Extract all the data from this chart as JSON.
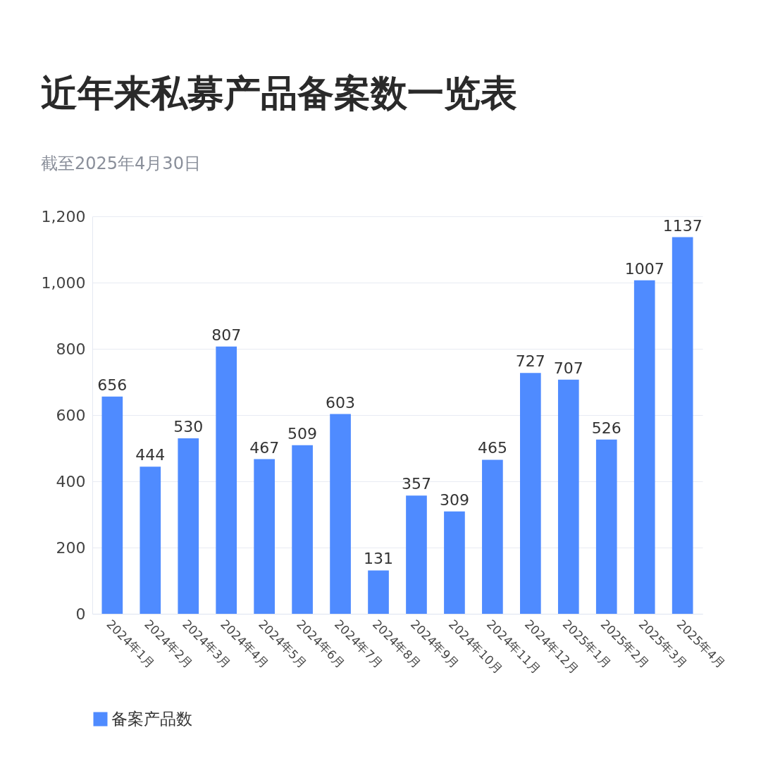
{
  "chart_data": {
    "type": "bar",
    "title": "近年来私募产品备案数一览表",
    "subtitle": "截至2025年4月30日",
    "categories": [
      "2024年1月",
      "2024年2月",
      "2024年3月",
      "2024年4月",
      "2024年5月",
      "2024年6月",
      "2024年7月",
      "2024年8月",
      "2024年9月",
      "2024年10月",
      "2024年11月",
      "2024年12月",
      "2025年1月",
      "2025年2月",
      "2025年3月",
      "2025年4月"
    ],
    "series": [
      {
        "name": "备案产品数",
        "color": "#4f8bff",
        "values": [
          656,
          444,
          530,
          807,
          467,
          509,
          603,
          131,
          357,
          309,
          465,
          727,
          707,
          526,
          1007,
          1137
        ]
      }
    ],
    "ylim": [
      0,
      1200
    ],
    "yticks": [
      0,
      200,
      400,
      600,
      800,
      {
        "value": 1000,
        "label": "1,000"
      },
      {
        "value": 1200,
        "label": "1,200"
      }
    ],
    "grid": "y",
    "legend": "bottom",
    "data_labels": true
  }
}
